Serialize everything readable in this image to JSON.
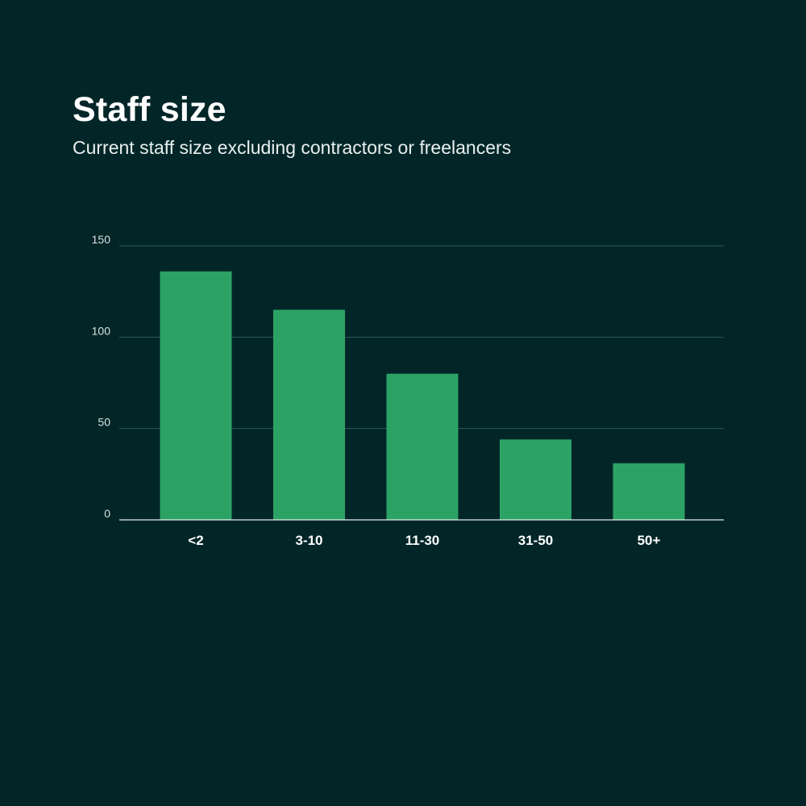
{
  "colors": {
    "background": "#022628",
    "bar": "#2ca365",
    "grid": "#2e5a57",
    "baseline": "#e6ecea"
  },
  "chart_data": {
    "type": "bar",
    "title": "Staff size",
    "subtitle": "Current staff size excluding contractors or freelancers",
    "categories": [
      "<2",
      "3-10",
      "11-30",
      "31-50",
      "50+"
    ],
    "values": [
      136,
      115,
      80,
      44,
      31
    ],
    "ylim": [
      0,
      150
    ],
    "yticks": [
      0,
      50,
      100,
      150
    ],
    "grid": true,
    "legend": "none"
  }
}
